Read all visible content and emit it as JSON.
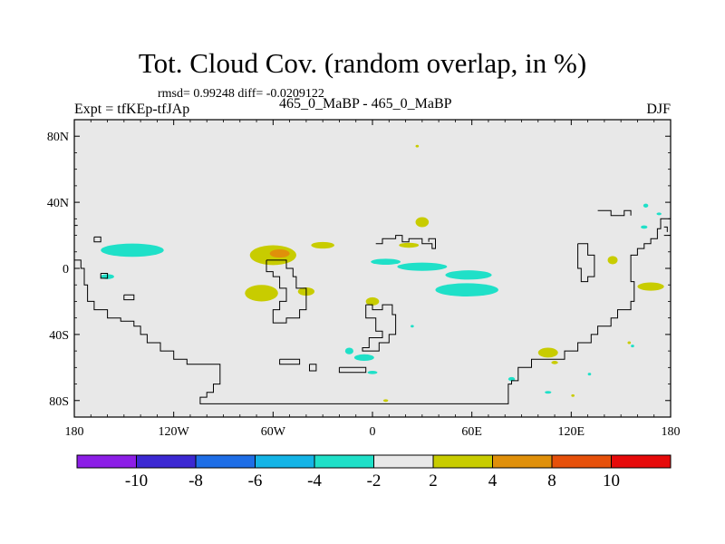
{
  "title": "Tot. Cloud Cov. (random overlap, in %)",
  "stats_text": "rmsd= 0.99248 diff= -0.0209122",
  "experiment_label": "Expt = tfKEp-tfJAp",
  "case_label": "465_0_MaBP - 465_0_MaBP",
  "season_label": "DJF",
  "colors": {
    "background_field": "#e8e8e8",
    "coastline": "#000000",
    "level_-4_-2": "#1fe0c8",
    "level_2_4": "#c8cc00",
    "level_4_8": "#e0900a"
  },
  "chart_data": {
    "type": "heatmap",
    "projection": "cylindrical-equidistant",
    "xlim": [
      -180,
      180
    ],
    "ylim": [
      -90,
      90
    ],
    "x_ticks": [
      {
        "value": -180,
        "label": "180"
      },
      {
        "value": -120,
        "label": "120W"
      },
      {
        "value": -60,
        "label": "60W"
      },
      {
        "value": 0,
        "label": "0"
      },
      {
        "value": 60,
        "label": "60E"
      },
      {
        "value": 120,
        "label": "120E"
      },
      {
        "value": 180,
        "label": "180"
      }
    ],
    "y_ticks": [
      {
        "value": 80,
        "label": "80N"
      },
      {
        "value": 40,
        "label": "40N"
      },
      {
        "value": 0,
        "label": "0"
      },
      {
        "value": -40,
        "label": "40S"
      },
      {
        "value": -80,
        "label": "80S"
      }
    ],
    "colorbar": {
      "colors": [
        "#8c1ee6",
        "#3c28d2",
        "#1e6ee6",
        "#14b4e6",
        "#1fe0c8",
        "#e8e8e8",
        "#c8cc00",
        "#e0900a",
        "#e6500a",
        "#e60a0a"
      ],
      "labels": [
        "-10",
        "-8",
        "-6",
        "-4",
        "-2",
        "2",
        "4",
        "8",
        "10"
      ]
    },
    "anomalies": [
      {
        "level": "-4 to -2",
        "lon": -145,
        "lat": 11,
        "rx": 19,
        "ry": 4
      },
      {
        "level": "-4 to -2",
        "lon": -160,
        "lat": -5,
        "rx": 4,
        "ry": 1.5
      },
      {
        "level": "-4 to -2",
        "lon": 8,
        "lat": 4,
        "rx": 9,
        "ry": 1.8
      },
      {
        "level": "-4 to -2",
        "lon": 30,
        "lat": 1,
        "rx": 15,
        "ry": 2.5
      },
      {
        "level": "-4 to -2",
        "lon": 58,
        "lat": -4,
        "rx": 14,
        "ry": 2.8
      },
      {
        "level": "-4 to -2",
        "lon": 57,
        "lat": -13,
        "rx": 19,
        "ry": 4
      },
      {
        "level": "-4 to -2",
        "lon": -5,
        "lat": -54,
        "rx": 6,
        "ry": 2
      },
      {
        "level": "-4 to -2",
        "lon": -14,
        "lat": -50,
        "rx": 2.5,
        "ry": 2
      },
      {
        "level": "-4 to -2",
        "lon": 0,
        "lat": -63,
        "rx": 3,
        "ry": 1
      },
      {
        "level": "-4 to -2",
        "lon": 165,
        "lat": 38,
        "rx": 1.5,
        "ry": 1.2
      },
      {
        "level": "-4 to -2",
        "lon": 173,
        "lat": 33,
        "rx": 1.5,
        "ry": 0.8
      },
      {
        "level": "-4 to -2",
        "lon": 164,
        "lat": 25,
        "rx": 2,
        "ry": 1
      },
      {
        "level": "-4 to -2",
        "lon": 84,
        "lat": -67,
        "rx": 2,
        "ry": 1.2
      },
      {
        "level": "-4 to -2",
        "lon": 106,
        "lat": -75,
        "rx": 2,
        "ry": 0.8
      },
      {
        "level": "-4 to -2",
        "lon": 131,
        "lat": -64,
        "rx": 1,
        "ry": 0.8
      },
      {
        "level": "-4 to -2",
        "lon": 157,
        "lat": -47,
        "rx": 1,
        "ry": 0.8
      },
      {
        "level": "-4 to -2",
        "lon": 24,
        "lat": -35,
        "rx": 1,
        "ry": 0.8
      },
      {
        "level": "2 to 4",
        "lon": -60,
        "lat": 8,
        "rx": 14,
        "ry": 6
      },
      {
        "level": "2 to 4",
        "lon": -67,
        "lat": -15,
        "rx": 10,
        "ry": 5
      },
      {
        "level": "2 to 4",
        "lon": -40,
        "lat": -14,
        "rx": 5,
        "ry": 2.5
      },
      {
        "level": "2 to 4",
        "lon": -30,
        "lat": 14,
        "rx": 7,
        "ry": 2
      },
      {
        "level": "2 to 4",
        "lon": 30,
        "lat": 28,
        "rx": 4,
        "ry": 3
      },
      {
        "level": "2 to 4",
        "lon": 22,
        "lat": 14,
        "rx": 6,
        "ry": 1.5
      },
      {
        "level": "2 to 4",
        "lon": 0,
        "lat": -20,
        "rx": 4,
        "ry": 2.5
      },
      {
        "level": "2 to 4",
        "lon": 145,
        "lat": 5,
        "rx": 3,
        "ry": 2.5
      },
      {
        "level": "2 to 4",
        "lon": 168,
        "lat": -11,
        "rx": 8,
        "ry": 2.5
      },
      {
        "level": "2 to 4",
        "lon": 106,
        "lat": -51,
        "rx": 6,
        "ry": 3
      },
      {
        "level": "2 to 4",
        "lon": 110,
        "lat": -57,
        "rx": 2,
        "ry": 1
      },
      {
        "level": "2 to 4",
        "lon": 27,
        "lat": 74,
        "rx": 1,
        "ry": 0.8
      },
      {
        "level": "2 to 4",
        "lon": 8,
        "lat": -80,
        "rx": 1.5,
        "ry": 0.8
      },
      {
        "level": "2 to 4",
        "lon": 155,
        "lat": -45,
        "rx": 1,
        "ry": 0.8
      },
      {
        "level": "2 to 4",
        "lon": 121,
        "lat": -77,
        "rx": 1,
        "ry": 0.8
      },
      {
        "level": "4 to 8",
        "lon": -56,
        "lat": 9,
        "rx": 6,
        "ry": 2.5
      }
    ]
  }
}
